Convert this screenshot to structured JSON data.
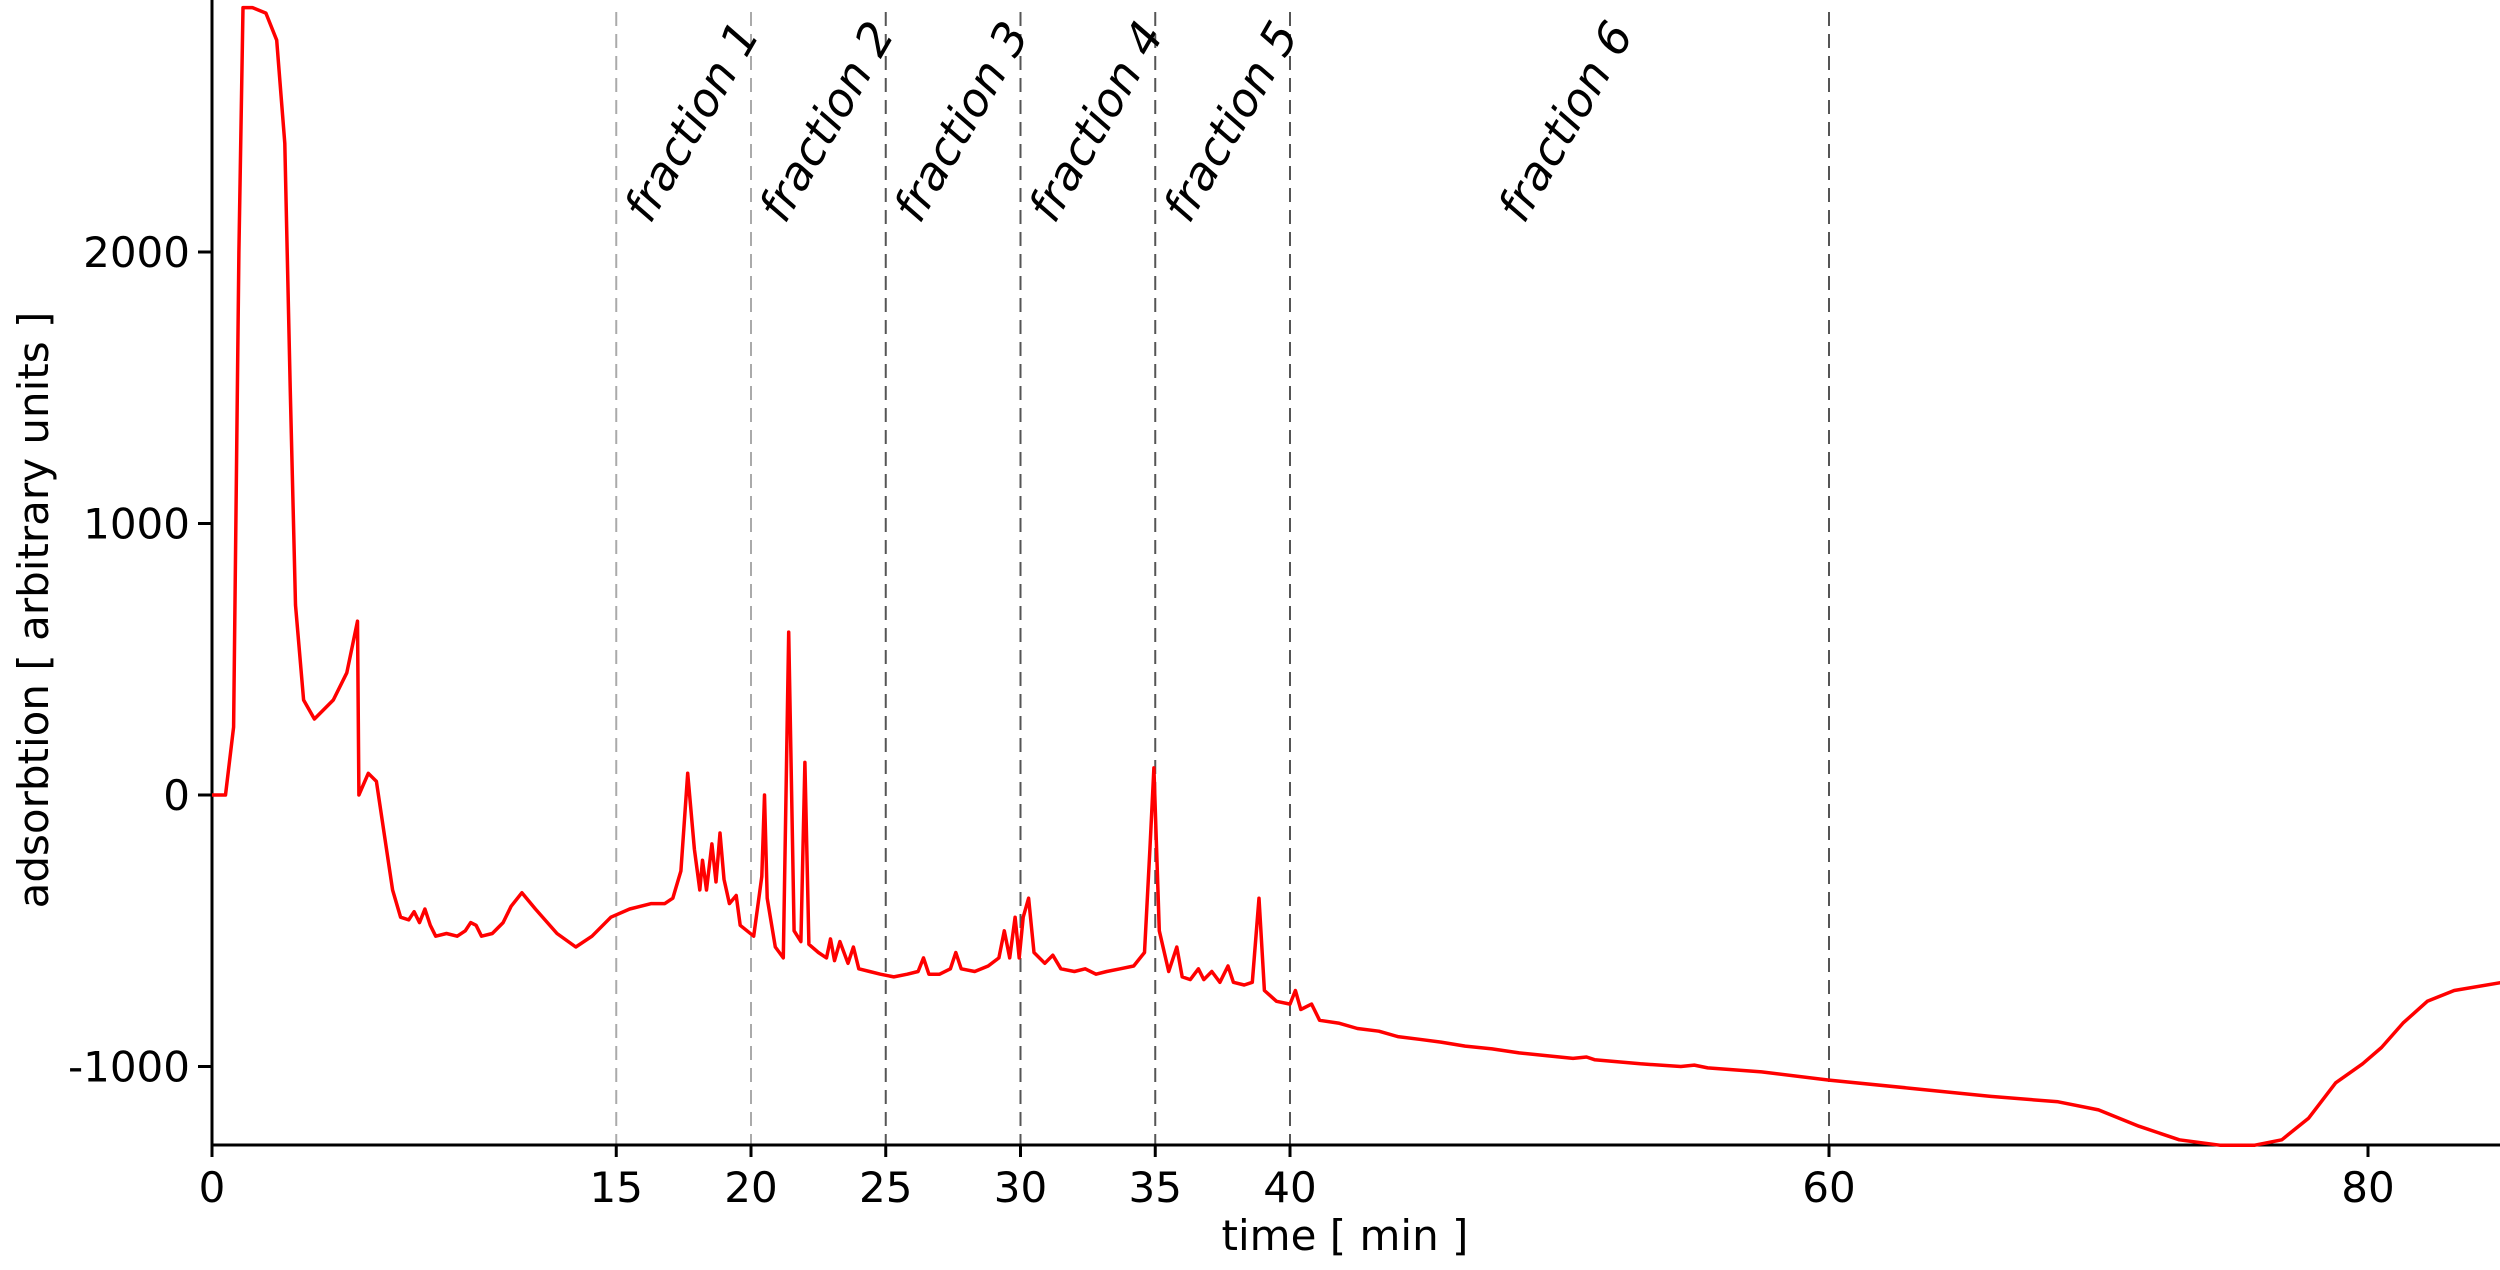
{
  "chart_data": {
    "type": "line",
    "title": "",
    "xlabel": "time [ min ]",
    "ylabel": "adsorbtion [ arbitrary units ]",
    "xlim": [
      0,
      85
    ],
    "ylim": [
      -1290,
      2920
    ],
    "x_ticks": [
      0,
      15,
      20,
      25,
      30,
      35,
      40,
      60,
      80
    ],
    "y_ticks": [
      2000,
      1000,
      0,
      -1000
    ],
    "grid": false,
    "legend": "none",
    "line_color": "#ff0000",
    "fractions": [
      {
        "label": "fraction 1",
        "start": 15,
        "end": 20
      },
      {
        "label": "fraction 2",
        "start": 20,
        "end": 25
      },
      {
        "label": "fraction 3",
        "start": 25,
        "end": 30
      },
      {
        "label": "fraction 4",
        "start": 30,
        "end": 35
      },
      {
        "label": "fraction 5",
        "start": 35,
        "end": 40
      },
      {
        "label": "fraction 6",
        "start": 40,
        "end": 60
      }
    ],
    "boundary_lines": [
      15,
      20,
      25,
      30,
      35,
      40,
      60
    ],
    "series": [
      {
        "points": [
          [
            0,
            0
          ],
          [
            0.5,
            0
          ],
          [
            0.8,
            250
          ],
          [
            1.0,
            2000
          ],
          [
            1.15,
            2900
          ],
          [
            1.5,
            2900
          ],
          [
            2.0,
            2880
          ],
          [
            2.4,
            2780
          ],
          [
            2.7,
            2400
          ],
          [
            2.9,
            1500
          ],
          [
            3.1,
            700
          ],
          [
            3.4,
            350
          ],
          [
            3.8,
            280
          ],
          [
            4.5,
            350
          ],
          [
            5.0,
            450
          ],
          [
            5.4,
            640
          ],
          [
            5.45,
            0
          ],
          [
            5.8,
            80
          ],
          [
            6.1,
            50
          ],
          [
            6.4,
            -150
          ],
          [
            6.7,
            -350
          ],
          [
            7.0,
            -450
          ],
          [
            7.3,
            -460
          ],
          [
            7.5,
            -430
          ],
          [
            7.7,
            -470
          ],
          [
            7.9,
            -420
          ],
          [
            8.1,
            -480
          ],
          [
            8.3,
            -520
          ],
          [
            8.7,
            -510
          ],
          [
            9.1,
            -520
          ],
          [
            9.4,
            -500
          ],
          [
            9.6,
            -470
          ],
          [
            9.8,
            -480
          ],
          [
            10.0,
            -520
          ],
          [
            10.4,
            -510
          ],
          [
            10.8,
            -470
          ],
          [
            11.1,
            -410
          ],
          [
            11.5,
            -360
          ],
          [
            12.0,
            -420
          ],
          [
            12.8,
            -510
          ],
          [
            13.5,
            -560
          ],
          [
            14.1,
            -520
          ],
          [
            14.8,
            -450
          ],
          [
            15.5,
            -420
          ],
          [
            16.3,
            -400
          ],
          [
            16.8,
            -400
          ],
          [
            17.1,
            -380
          ],
          [
            17.4,
            -280
          ],
          [
            17.65,
            80
          ],
          [
            17.9,
            -200
          ],
          [
            18.1,
            -350
          ],
          [
            18.2,
            -240
          ],
          [
            18.35,
            -350
          ],
          [
            18.55,
            -180
          ],
          [
            18.7,
            -320
          ],
          [
            18.85,
            -140
          ],
          [
            19.0,
            -310
          ],
          [
            19.2,
            -400
          ],
          [
            19.45,
            -370
          ],
          [
            19.6,
            -480
          ],
          [
            20.1,
            -520
          ],
          [
            20.4,
            -300
          ],
          [
            20.5,
            0
          ],
          [
            20.6,
            -380
          ],
          [
            20.9,
            -560
          ],
          [
            21.2,
            -600
          ],
          [
            21.4,
            600
          ],
          [
            21.6,
            -500
          ],
          [
            21.85,
            -540
          ],
          [
            22.0,
            120
          ],
          [
            22.15,
            -550
          ],
          [
            22.5,
            -580
          ],
          [
            22.8,
            -600
          ],
          [
            22.95,
            -530
          ],
          [
            23.1,
            -610
          ],
          [
            23.3,
            -540
          ],
          [
            23.6,
            -620
          ],
          [
            23.8,
            -560
          ],
          [
            24.0,
            -640
          ],
          [
            24.4,
            -650
          ],
          [
            24.8,
            -660
          ],
          [
            25.3,
            -670
          ],
          [
            25.8,
            -660
          ],
          [
            26.2,
            -650
          ],
          [
            26.4,
            -600
          ],
          [
            26.6,
            -660
          ],
          [
            27.0,
            -660
          ],
          [
            27.4,
            -640
          ],
          [
            27.6,
            -580
          ],
          [
            27.8,
            -640
          ],
          [
            28.3,
            -650
          ],
          [
            28.8,
            -630
          ],
          [
            29.2,
            -600
          ],
          [
            29.4,
            -500
          ],
          [
            29.6,
            -600
          ],
          [
            29.8,
            -450
          ],
          [
            29.95,
            -600
          ],
          [
            30.1,
            -450
          ],
          [
            30.3,
            -380
          ],
          [
            30.5,
            -580
          ],
          [
            30.9,
            -620
          ],
          [
            31.2,
            -590
          ],
          [
            31.5,
            -640
          ],
          [
            32.0,
            -650
          ],
          [
            32.4,
            -640
          ],
          [
            32.8,
            -660
          ],
          [
            33.2,
            -650
          ],
          [
            33.7,
            -640
          ],
          [
            34.2,
            -630
          ],
          [
            34.6,
            -580
          ],
          [
            34.8,
            -200
          ],
          [
            34.95,
            100
          ],
          [
            35.15,
            -500
          ],
          [
            35.5,
            -650
          ],
          [
            35.8,
            -560
          ],
          [
            36.0,
            -670
          ],
          [
            36.3,
            -680
          ],
          [
            36.6,
            -640
          ],
          [
            36.8,
            -680
          ],
          [
            37.1,
            -650
          ],
          [
            37.4,
            -690
          ],
          [
            37.7,
            -630
          ],
          [
            37.9,
            -690
          ],
          [
            38.3,
            -700
          ],
          [
            38.6,
            -690
          ],
          [
            38.85,
            -380
          ],
          [
            39.05,
            -720
          ],
          [
            39.5,
            -760
          ],
          [
            40.0,
            -770
          ],
          [
            40.2,
            -720
          ],
          [
            40.4,
            -790
          ],
          [
            40.8,
            -770
          ],
          [
            41.1,
            -830
          ],
          [
            41.8,
            -840
          ],
          [
            42.5,
            -860
          ],
          [
            43.3,
            -870
          ],
          [
            44.0,
            -890
          ],
          [
            44.8,
            -900
          ],
          [
            45.6,
            -910
          ],
          [
            46.5,
            -925
          ],
          [
            47.5,
            -935
          ],
          [
            48.5,
            -950
          ],
          [
            49.5,
            -960
          ],
          [
            50.5,
            -970
          ],
          [
            51.0,
            -965
          ],
          [
            51.3,
            -975
          ],
          [
            53.0,
            -990
          ],
          [
            54.5,
            -1000
          ],
          [
            55.0,
            -995
          ],
          [
            55.5,
            -1005
          ],
          [
            57.5,
            -1020
          ],
          [
            60.0,
            -1050
          ],
          [
            63.0,
            -1080
          ],
          [
            66.0,
            -1110
          ],
          [
            68.5,
            -1130
          ],
          [
            70.0,
            -1160
          ],
          [
            71.5,
            -1220
          ],
          [
            73.0,
            -1270
          ],
          [
            74.5,
            -1290
          ],
          [
            75.8,
            -1290
          ],
          [
            76.8,
            -1270
          ],
          [
            77.8,
            -1190
          ],
          [
            78.8,
            -1060
          ],
          [
            79.8,
            -990
          ],
          [
            80.5,
            -930
          ],
          [
            81.3,
            -840
          ],
          [
            82.2,
            -760
          ],
          [
            83.2,
            -720
          ],
          [
            85.0,
            -690
          ]
        ]
      }
    ]
  }
}
